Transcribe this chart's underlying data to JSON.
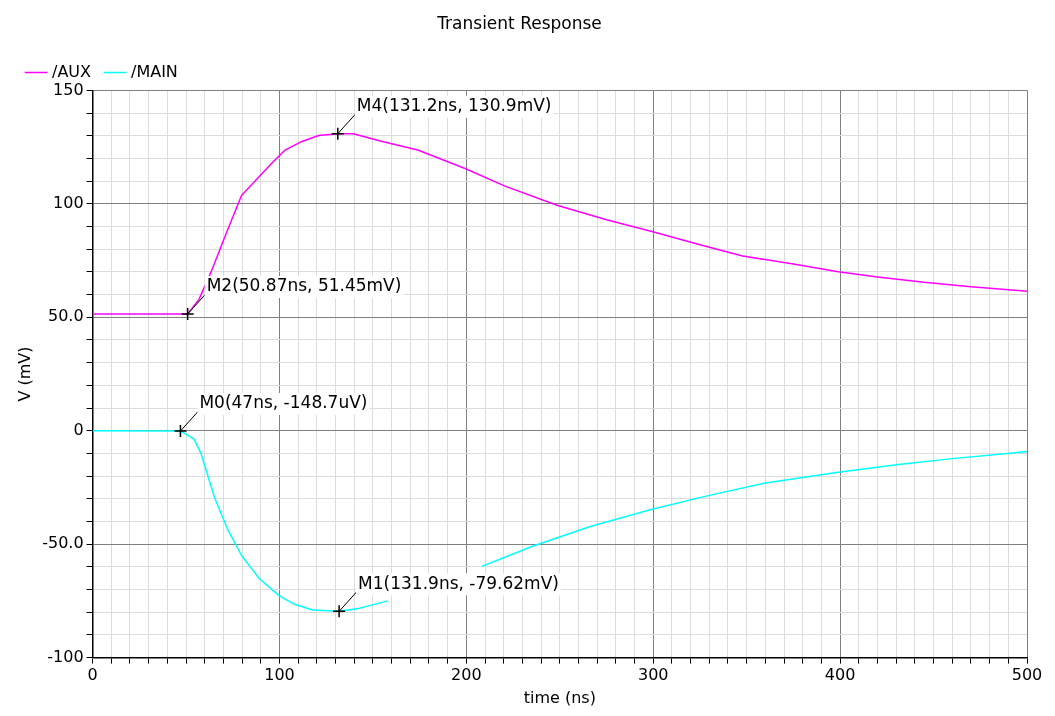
{
  "chart_data": {
    "type": "line",
    "title": "Transient Response",
    "xlabel": "time (ns)",
    "ylabel": "V (mV)",
    "legend": "top left",
    "grid": true,
    "line_style": "solid",
    "marker": "none",
    "series": [
      {
        "name": "/AUX",
        "color": "#ff00ff",
        "x": [
          0,
          50.87,
          57,
          63.4,
          72,
          79.7,
          88.8,
          96,
          103,
          112,
          121,
          131.2,
          139.5,
          155,
          174,
          199,
          221,
          248.9,
          275,
          299.3,
          325,
          347.8,
          375,
          399,
          420,
          444.9,
          470,
          500
        ],
        "values": [
          51.5,
          51.5,
          58,
          70,
          88,
          103.7,
          111.7,
          118,
          123.7,
          127.5,
          130.1,
          130.9,
          130.9,
          127.5,
          123.7,
          115.7,
          107.7,
          99.3,
          93,
          87.8,
          82,
          77,
          73.5,
          70.1,
          67.8,
          65.4,
          63.5,
          61.5
        ]
      },
      {
        "name": "/MAIN",
        "color": "#00ffff",
        "x": [
          0,
          47,
          54.3,
          58,
          65.2,
          72,
          79.7,
          89,
          99.6,
          108,
          117.8,
          131.9,
          143,
          158,
          174,
          190,
          208.3,
          235,
          266.3,
          299.3,
          330,
          360,
          399,
          430,
          460,
          500
        ],
        "values": [
          0,
          -0.1,
          -3.7,
          -10,
          -29.3,
          -43,
          -55,
          -65,
          -72.6,
          -76.5,
          -79,
          -79.62,
          -78.2,
          -75,
          null,
          null,
          -59.8,
          -51,
          -42.2,
          -34.6,
          -28.5,
          -23,
          -18.3,
          -15,
          -12.3,
          -9.2
        ]
      }
    ],
    "xlim": [
      0,
      500
    ],
    "ylim": [
      -100,
      150
    ],
    "xticks": [
      0,
      {
        "value": 10,
        "label": null
      },
      {
        "value": 20,
        "label": null
      },
      {
        "value": 30,
        "label": null
      },
      {
        "value": 40,
        "label": null
      },
      {
        "value": 50,
        "label": null
      },
      {
        "value": 60,
        "label": null
      },
      {
        "value": 70,
        "label": null
      },
      {
        "value": 80,
        "label": null
      },
      {
        "value": 90,
        "label": null
      },
      100,
      {
        "value": 110,
        "label": null
      },
      {
        "value": 120,
        "label": null
      },
      {
        "value": 130,
        "label": null
      },
      {
        "value": 140,
        "label": null
      },
      {
        "value": 150,
        "label": null
      },
      {
        "value": 160,
        "label": null
      },
      {
        "value": 170,
        "label": null
      },
      {
        "value": 180,
        "label": null
      },
      {
        "value": 190,
        "label": null
      },
      200,
      {
        "value": 210,
        "label": null
      },
      {
        "value": 220,
        "label": null
      },
      {
        "value": 230,
        "label": null
      },
      {
        "value": 240,
        "label": null
      },
      {
        "value": 250,
        "label": null
      },
      {
        "value": 260,
        "label": null
      },
      {
        "value": 270,
        "label": null
      },
      {
        "value": 280,
        "label": null
      },
      {
        "value": 290,
        "label": null
      },
      300,
      {
        "value": 310,
        "label": null
      },
      {
        "value": 320,
        "label": null
      },
      {
        "value": 330,
        "label": null
      },
      {
        "value": 340,
        "label": null
      },
      {
        "value": 350,
        "label": null
      },
      {
        "value": 360,
        "label": null
      },
      {
        "value": 370,
        "label": null
      },
      {
        "value": 380,
        "label": null
      },
      {
        "value": 390,
        "label": null
      },
      400,
      {
        "value": 410,
        "label": null
      },
      {
        "value": 420,
        "label": null
      },
      {
        "value": 430,
        "label": null
      },
      {
        "value": 440,
        "label": null
      },
      {
        "value": 450,
        "label": null
      },
      {
        "value": 460,
        "label": null
      },
      {
        "value": 470,
        "label": null
      },
      {
        "value": 480,
        "label": null
      },
      {
        "value": 490,
        "label": null
      },
      500
    ],
    "yticks": [
      {
        "value": -100,
        "label": "-100"
      },
      {
        "value": -90,
        "label": null
      },
      {
        "value": -80,
        "label": null
      },
      {
        "value": -70,
        "label": null
      },
      {
        "value": -60,
        "label": null
      },
      {
        "value": -50,
        "label": "-50.0"
      },
      {
        "value": -40,
        "label": null
      },
      {
        "value": -30,
        "label": null
      },
      {
        "value": -20,
        "label": null
      },
      {
        "value": -10,
        "label": null
      },
      0,
      {
        "value": 10,
        "label": null
      },
      {
        "value": 20,
        "label": null
      },
      {
        "value": 30,
        "label": null
      },
      {
        "value": 40,
        "label": null
      },
      {
        "value": 50,
        "label": "50.0"
      },
      {
        "value": 60,
        "label": null
      },
      {
        "value": 70,
        "label": null
      },
      {
        "value": 80,
        "label": null
      },
      {
        "value": 90,
        "label": null
      },
      100,
      {
        "value": 110,
        "label": null
      },
      {
        "value": 120,
        "label": null
      },
      {
        "value": 130,
        "label": null
      },
      {
        "value": 140,
        "label": null
      },
      150
    ],
    "annotations": [
      {
        "text": "M4(131.2ns, 130.9mV)",
        "x": 131.2,
        "y": 130.9
      },
      {
        "text": "M2(50.87ns, 51.45mV)",
        "x": 50.87,
        "y": 51.45
      },
      {
        "text": "M0(47ns, -148.7uV)",
        "x": 47,
        "y": -0.1487
      },
      {
        "text": "M1(131.9ns, -79.62mV)",
        "x": 131.9,
        "y": -79.62
      }
    ]
  }
}
